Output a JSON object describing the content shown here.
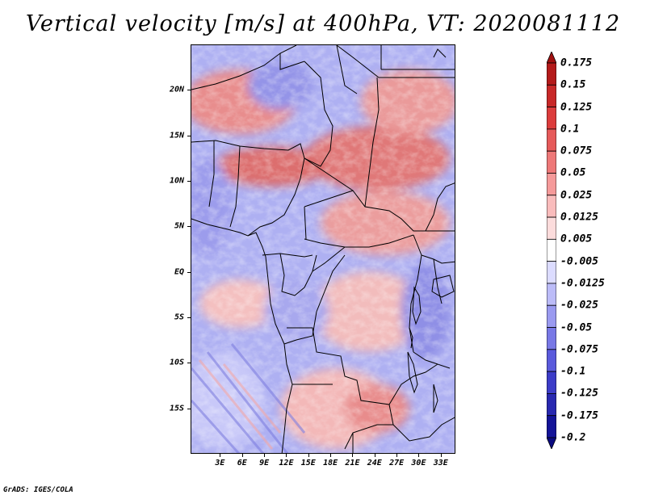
{
  "title": "Vertical velocity [m/s] at 400hPa, VT: 2020081112",
  "credit": "GrADS: IGES/COLA",
  "map": {
    "lon_range": [
      -1,
      35
    ],
    "lat_range": [
      -20,
      25
    ],
    "y_axis_labels": [
      {
        "lat": 20,
        "text": "20N"
      },
      {
        "lat": 15,
        "text": "15N"
      },
      {
        "lat": 10,
        "text": "10N"
      },
      {
        "lat": 5,
        "text": "5N"
      },
      {
        "lat": 0,
        "text": "EQ"
      },
      {
        "lat": -5,
        "text": "5S"
      },
      {
        "lat": -10,
        "text": "10S"
      },
      {
        "lat": -15,
        "text": "15S"
      }
    ],
    "x_axis_labels": [
      {
        "lon": 3,
        "text": "3E"
      },
      {
        "lon": 6,
        "text": "6E"
      },
      {
        "lon": 9,
        "text": "9E"
      },
      {
        "lon": 12,
        "text": "12E"
      },
      {
        "lon": 15,
        "text": "15E"
      },
      {
        "lon": 18,
        "text": "18E"
      },
      {
        "lon": 21,
        "text": "21E"
      },
      {
        "lon": 24,
        "text": "24E"
      },
      {
        "lon": 27,
        "text": "27E"
      },
      {
        "lon": 30,
        "text": "30E"
      },
      {
        "lon": 33,
        "text": "33E"
      }
    ]
  },
  "colorbar": {
    "labels": [
      "0.175",
      "0.15",
      "0.125",
      "0.1",
      "0.075",
      "0.05",
      "0.025",
      "0.0125",
      "0.005",
      "-0.005",
      "-0.0125",
      "-0.025",
      "-0.05",
      "-0.075",
      "-0.1",
      "-0.125",
      "-0.175",
      "-0.2"
    ],
    "colors": [
      "#a01010",
      "#b41a1a",
      "#c82828",
      "#dc3c3c",
      "#e65a5a",
      "#ee7878",
      "#f59a9a",
      "#f9bcbc",
      "#fcdcdc",
      "#ffffff",
      "#dcdcff",
      "#bcbcf8",
      "#9a9af0",
      "#7878e6",
      "#5a5adc",
      "#3c3cc8",
      "#2828b0",
      "#141498",
      "#0a0a80"
    ]
  }
}
